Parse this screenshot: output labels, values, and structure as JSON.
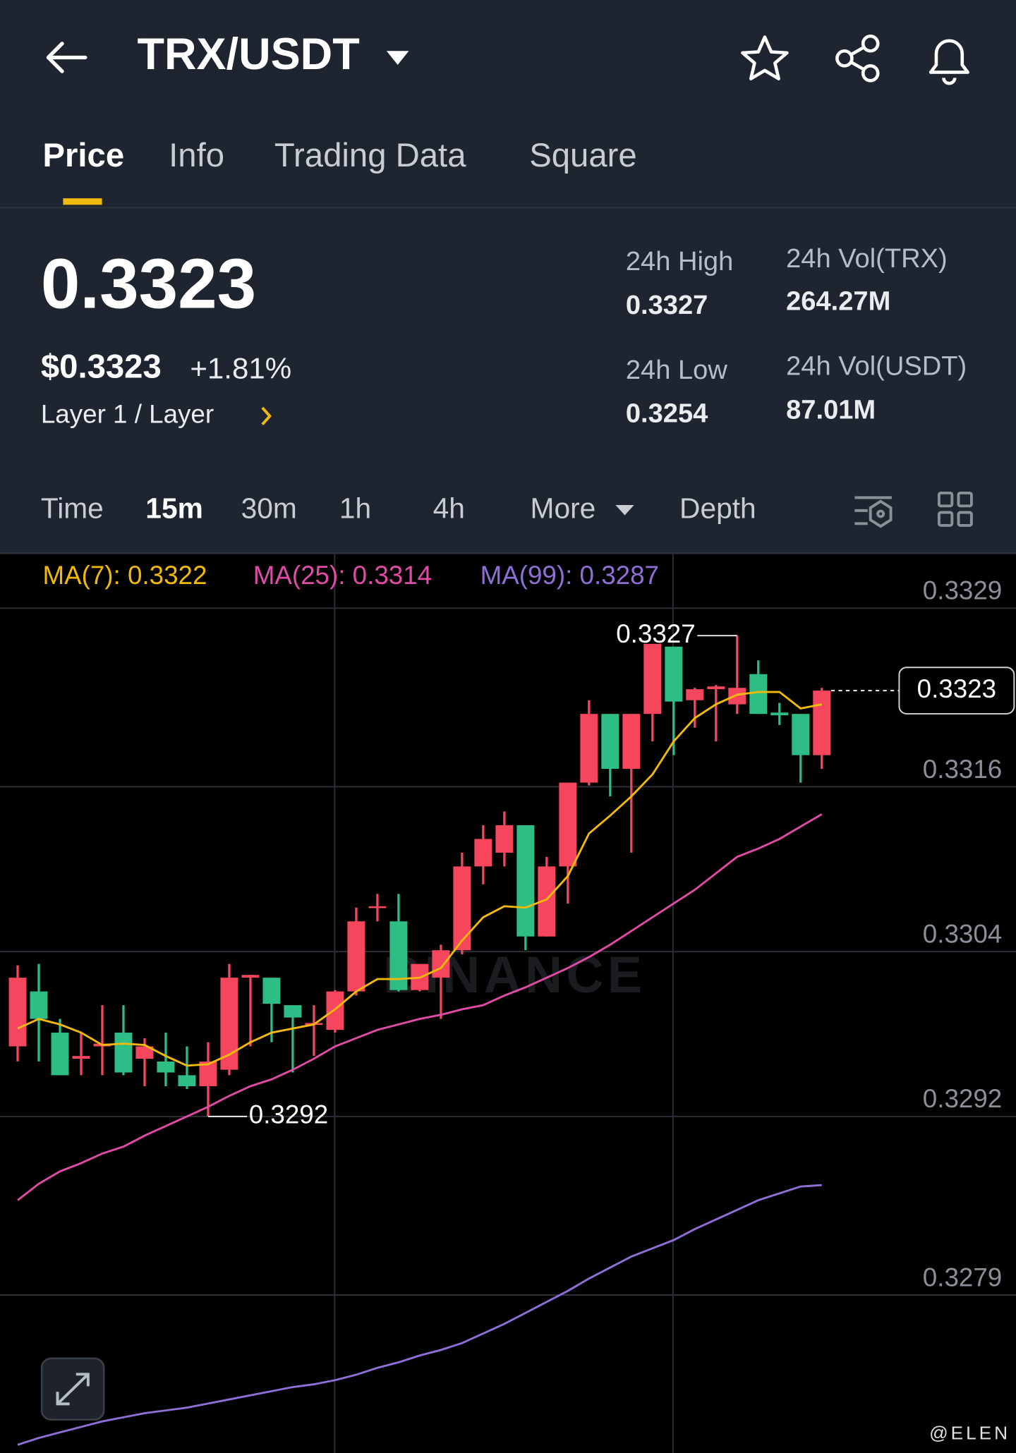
{
  "header": {
    "pair": "TRX/USDT",
    "tabs": [
      "Price",
      "Info",
      "Trading Data",
      "Square"
    ]
  },
  "ticker": {
    "price": "0.3323",
    "usd_price": "$0.3323",
    "change": "+1.81%",
    "sector": "Layer 1 / Layer",
    "stats": [
      {
        "label": "24h High",
        "value": "0.3327"
      },
      {
        "label": "24h Vol(TRX)",
        "value": "264.27M"
      },
      {
        "label": "24h Low",
        "value": "0.3254"
      },
      {
        "label": "24h Vol(USDT)",
        "value": "87.01M"
      }
    ]
  },
  "intervals": [
    "Time",
    "15m",
    "30m",
    "1h",
    "4h",
    "More",
    "Depth"
  ],
  "chart_data": {
    "type": "candlestick",
    "ylim": [
      0.32675,
      0.3333
    ],
    "yticks": [
      0.3329,
      0.3316,
      0.3304,
      0.3292,
      0.3279
    ],
    "grid": true,
    "up_color": "#f6465d",
    "down_color": "#2ebd85",
    "open": [
      0.32971,
      0.33011,
      0.32981,
      0.32962,
      0.32971,
      0.32981,
      0.32962,
      0.3296,
      0.3295,
      0.32942,
      0.32954,
      0.33021,
      0.33021,
      0.33001,
      0.32987,
      0.32983,
      0.33011,
      0.33072,
      0.33062,
      0.33012,
      0.33021,
      0.33041,
      0.33102,
      0.33112,
      0.33132,
      0.33051,
      0.33102,
      0.33163,
      0.33213,
      0.33173,
      0.33213,
      0.33262,
      0.33223,
      0.33231,
      0.3322,
      0.33242,
      0.33214,
      0.33213,
      0.33183
    ],
    "high": [
      0.3303,
      0.33031,
      0.32991,
      0.32981,
      0.33001,
      0.33001,
      0.32977,
      0.32981,
      0.32971,
      0.32974,
      0.33031,
      0.33023,
      0.33021,
      0.33001,
      0.33001,
      0.33012,
      0.33072,
      0.33082,
      0.33082,
      0.33031,
      0.33045,
      0.33112,
      0.33132,
      0.33142,
      0.33132,
      0.33109,
      0.33163,
      0.33223,
      0.33213,
      0.33213,
      0.33264,
      0.33262,
      0.33232,
      0.33234,
      0.3327,
      0.33252,
      0.33221,
      0.33213,
      0.33232
    ],
    "low": [
      0.3296,
      0.3296,
      0.3295,
      0.3295,
      0.3295,
      0.3295,
      0.32942,
      0.32942,
      0.3294,
      0.3292,
      0.3295,
      0.32971,
      0.32974,
      0.32952,
      0.32964,
      0.32981,
      0.33008,
      0.33062,
      0.33011,
      0.33011,
      0.32991,
      0.33038,
      0.33089,
      0.33102,
      0.33041,
      0.33051,
      0.33075,
      0.33161,
      0.33153,
      0.33112,
      0.33193,
      0.33183,
      0.33203,
      0.33193,
      0.33213,
      0.33213,
      0.33205,
      0.33163,
      0.33173
    ],
    "close": [
      0.33021,
      0.32991,
      0.3295,
      0.32964,
      0.32973,
      0.32952,
      0.32971,
      0.32952,
      0.32942,
      0.3296,
      0.33021,
      0.33023,
      0.33002,
      0.32992,
      0.32988,
      0.33011,
      0.33062,
      0.33073,
      0.33012,
      0.33031,
      0.33041,
      0.33102,
      0.33122,
      0.33132,
      0.33051,
      0.33102,
      0.33163,
      0.33213,
      0.33173,
      0.33213,
      0.33264,
      0.33222,
      0.33231,
      0.33233,
      0.33232,
      0.33213,
      0.33212,
      0.33183,
      0.3323
    ],
    "series": [
      {
        "name": "MA(7): 0.3322",
        "color": "#f0b90b",
        "values": [
          0.32984,
          0.32991,
          0.32987,
          0.32981,
          0.32972,
          0.32973,
          0.32972,
          0.32964,
          0.32957,
          0.32958,
          0.32965,
          0.32974,
          0.32981,
          0.32984,
          0.32987,
          0.32998,
          0.33011,
          0.3302,
          0.3302,
          0.33021,
          0.33028,
          0.33048,
          0.33065,
          0.33073,
          0.33072,
          0.33078,
          0.33095,
          0.33126,
          0.33139,
          0.33153,
          0.33169,
          0.33193,
          0.3321,
          0.3322,
          0.33227,
          0.33229,
          0.33229,
          0.33217,
          0.3322
        ]
      },
      {
        "name": "MA(25): 0.3314",
        "color": "#e04ba6",
        "values": [
          0.32859,
          0.32871,
          0.3288,
          0.32886,
          0.32893,
          0.32898,
          0.32906,
          0.32913,
          0.3292,
          0.32927,
          0.32935,
          0.32942,
          0.32947,
          0.32954,
          0.32962,
          0.32971,
          0.32977,
          0.32983,
          0.32987,
          0.32991,
          0.32994,
          0.32998,
          0.33001,
          0.33008,
          0.33014,
          0.33021,
          0.33028,
          0.33036,
          0.33045,
          0.33055,
          0.33065,
          0.33075,
          0.33085,
          0.33097,
          0.33109,
          0.33115,
          0.33122,
          0.33131,
          0.3314
        ]
      },
      {
        "name": "MA(99): 0.3287",
        "color": "#8e6fd6",
        "values": [
          0.32681,
          0.32686,
          0.3269,
          0.32694,
          0.32698,
          0.32701,
          0.32704,
          0.32706,
          0.32708,
          0.32711,
          0.32714,
          0.32717,
          0.3272,
          0.32723,
          0.32725,
          0.32728,
          0.32732,
          0.32737,
          0.32741,
          0.32746,
          0.3275,
          0.32755,
          0.32762,
          0.32769,
          0.32777,
          0.32785,
          0.32793,
          0.32802,
          0.3281,
          0.32818,
          0.32824,
          0.3283,
          0.32838,
          0.32845,
          0.32852,
          0.32859,
          0.32864,
          0.32869,
          0.3287
        ]
      }
    ],
    "high_marker": 0.3327,
    "low_marker": 0.3292,
    "last_price": 0.3323,
    "watermark": "BINANCE"
  },
  "watermark": "@ELEN"
}
